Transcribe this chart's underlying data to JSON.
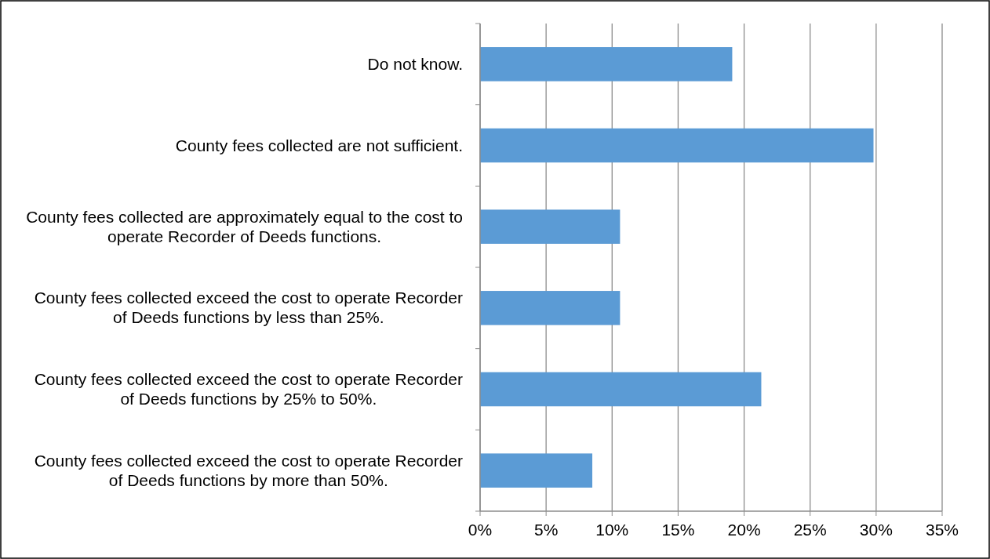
{
  "chart_data": {
    "type": "bar",
    "orientation": "horizontal",
    "categories": [
      "Do not know.",
      "County fees collected are not sufficient.",
      "County fees collected are approximately equal to the cost to operate Recorder of Deeds functions.",
      "County fees collected exceed the cost to operate Recorder of Deeds functions by less than 25%.",
      "County fees collected exceed the cost to operate Recorder of Deeds functions by 25% to 50%.",
      "County fees collected exceed the cost to operate Recorder of Deeds functions by more than 50%."
    ],
    "values": [
      19.1,
      29.8,
      10.6,
      10.6,
      21.3,
      8.5
    ],
    "color": "#5b9bd5",
    "xlim": [
      0,
      35
    ],
    "xticks": [
      {
        "value": 0,
        "label": "0%"
      },
      {
        "value": 5,
        "label": "5%"
      },
      {
        "value": 10,
        "label": "10%"
      },
      {
        "value": 15,
        "label": "15%"
      },
      {
        "value": 20,
        "label": "20%"
      },
      {
        "value": 25,
        "label": "25%"
      },
      {
        "value": 30,
        "label": "30%"
      },
      {
        "value": 35,
        "label": "35%"
      }
    ],
    "grid": "x"
  }
}
